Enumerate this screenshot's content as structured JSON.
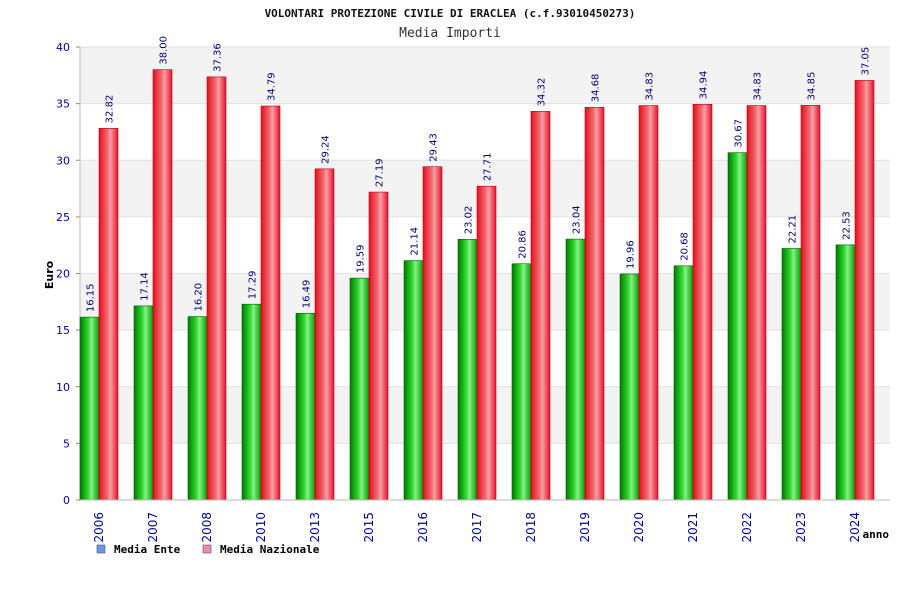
{
  "chart_data": {
    "type": "bar",
    "title": "VOLONTARI PROTEZIONE CIVILE DI ERACLEA (c.f.93010450273)",
    "subtitle": "Media Importi",
    "ylabel": "Euro",
    "xlabel": "anno",
    "ylim": [
      0,
      40
    ],
    "yticks": [
      "0",
      "5",
      "10",
      "15",
      "20",
      "25",
      "30",
      "35",
      "40"
    ],
    "categories": [
      "2006",
      "2007",
      "2008",
      "2010",
      "2013",
      "2015",
      "2016",
      "2017",
      "2018",
      "2019",
      "2020",
      "2021",
      "2022",
      "2023",
      "2024"
    ],
    "series": [
      {
        "name": "Media Ente",
        "color": "#22bb22",
        "values": [
          16.15,
          17.14,
          16.2,
          17.29,
          16.49,
          19.59,
          21.14,
          23.02,
          20.86,
          23.04,
          19.96,
          20.68,
          30.67,
          22.21,
          22.53
        ],
        "labels": [
          "16.15",
          "17.14",
          "16.20",
          "17.29",
          "16.49",
          "19.59",
          "21.14",
          "23.02",
          "20.86",
          "23.04",
          "19.96",
          "20.68",
          "30.67",
          "22.21",
          "22.53"
        ]
      },
      {
        "name": "Media Nazionale",
        "color": "#ee2233",
        "values": [
          32.82,
          38.0,
          37.36,
          34.79,
          29.24,
          27.19,
          29.43,
          27.71,
          34.32,
          34.68,
          34.83,
          34.94,
          34.83,
          34.85,
          37.05
        ],
        "labels": [
          "32.82",
          "38.00",
          "37.36",
          "34.79",
          "29.24",
          "27.19",
          "29.43",
          "27.71",
          "34.32",
          "34.68",
          "34.83",
          "34.94",
          "34.83",
          "34.85",
          "37.05"
        ]
      }
    ],
    "legend": {
      "placement": "bottom-left",
      "items": [
        {
          "label": "Media Ente",
          "swatch": "#6699ee"
        },
        {
          "label": "Media Nazionale",
          "swatch": "#ee88bb"
        }
      ]
    },
    "grid": true
  }
}
